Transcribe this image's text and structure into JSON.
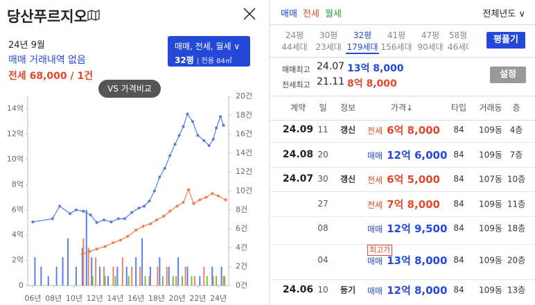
{
  "header": {
    "title": "당산푸르지오"
  },
  "summary": {
    "month": "24년 9월",
    "sale": "매매 거래내역 없음",
    "jeonse": "전세 68,000 / 1건"
  },
  "filter": {
    "types": "매매, 전세, 월세",
    "size": "32평",
    "area": "전용 84㎡"
  },
  "compare_button": "VS 가격비교",
  "chart_data": {
    "type": "line",
    "xlim": [
      2005.5,
      2025
    ],
    "xticks": [
      {
        "value": 2006,
        "label": "06년"
      },
      {
        "value": 2008,
        "label": "08년"
      },
      {
        "value": 2010,
        "label": "10년"
      },
      {
        "value": 2012,
        "label": "12년"
      },
      {
        "value": 2014,
        "label": "14년"
      },
      {
        "value": 2016,
        "label": "16년"
      },
      {
        "value": 2018,
        "label": "18년"
      },
      {
        "value": 2020,
        "label": "20년"
      },
      {
        "value": 2022,
        "label": "22년"
      },
      {
        "value": 2024,
        "label": "24년"
      }
    ],
    "ylim": [
      0,
      15
    ],
    "yticks": [
      0,
      {
        "value": 2,
        "label": "2억"
      },
      {
        "value": 4,
        "label": "4억"
      },
      {
        "value": 6,
        "label": "6억"
      },
      {
        "value": 8,
        "label": "8억"
      },
      {
        "value": 10,
        "label": "10억"
      },
      {
        "value": 12,
        "label": "12억"
      },
      {
        "value": 14,
        "label": "14억"
      }
    ],
    "y2lim": [
      0,
      20
    ],
    "y2ticks": [
      {
        "value": 0,
        "label": "0건"
      },
      {
        "value": 2,
        "label": "2건"
      },
      {
        "value": 4,
        "label": "4건"
      },
      {
        "value": 6,
        "label": "6건"
      },
      {
        "value": 8,
        "label": "8건"
      },
      {
        "value": 10,
        "label": "10건"
      },
      {
        "value": 12,
        "label": "12건"
      },
      {
        "value": 14,
        "label": "14건"
      },
      {
        "value": 16,
        "label": "16건"
      },
      {
        "value": 18,
        "label": "18건"
      },
      {
        "value": 20,
        "label": "20건"
      }
    ],
    "series": [
      {
        "type": "bar",
        "axis": "y2",
        "color": "#5b7fe8",
        "x": [
          2006.2,
          2006.8,
          2007.5,
          2008.3,
          2008.9,
          2009.4,
          2010.2,
          2010.8,
          2011.2,
          2011.7,
          2012.5,
          2013.3,
          2014.2,
          2015.1,
          2016.0,
          2016.6,
          2017.4,
          2018.3,
          2019.2,
          2020.1,
          2021.0,
          2022.2,
          2023.4,
          2024.3
        ],
        "values": [
          3,
          2,
          1,
          2,
          3,
          5,
          2,
          4,
          8,
          3,
          2,
          1,
          2,
          2,
          3,
          5,
          2,
          3,
          2,
          3,
          2,
          1,
          2,
          2
        ]
      },
      {
        "type": "bar",
        "axis": "y2",
        "color": "#f0845c",
        "x": [
          2010.9,
          2011.4,
          2012.1,
          2012.9,
          2013.8,
          2014.7,
          2015.6,
          2016.4,
          2017.3,
          2018.1,
          2019.0,
          2019.9,
          2020.8,
          2021.7,
          2022.6,
          2023.5,
          2024.5
        ],
        "values": [
          5,
          4,
          3,
          2,
          2,
          3,
          2,
          2,
          1,
          2,
          2,
          1,
          2,
          1,
          2,
          1,
          1
        ]
      },
      {
        "type": "bar",
        "axis": "y2",
        "color": "#6cc04a",
        "x": [
          2011.8,
          2013.0,
          2014.0,
          2015.3,
          2016.9,
          2018.6,
          2019.6,
          2020.5,
          2021.4,
          2022.9,
          2023.8,
          2024.6
        ],
        "values": [
          1,
          1,
          1,
          1,
          1,
          1,
          1,
          1,
          1,
          1,
          1,
          1
        ]
      },
      {
        "type": "line",
        "color": "#4f7be6",
        "x": [
          2006.0,
          2007.9,
          2008.6,
          2009.6,
          2010.2,
          2010.9,
          2011.6,
          2012.2,
          2012.9,
          2013.6,
          2014.3,
          2014.9,
          2015.6,
          2016.3,
          2016.8,
          2017.3,
          2017.8,
          2018.3,
          2018.8,
          2019.3,
          2019.8,
          2020.2,
          2020.6,
          2021.0,
          2021.5,
          2022.0,
          2022.6,
          2023.1,
          2023.5,
          2023.8,
          2024.2,
          2024.5
        ],
        "values": [
          5.05,
          5.3,
          6.3,
          5.7,
          6.0,
          5.9,
          5.6,
          5.0,
          5.2,
          5.05,
          5.3,
          5.3,
          5.8,
          6.15,
          6.3,
          6.7,
          7.5,
          8.6,
          9.3,
          10.3,
          11.2,
          11.9,
          12.6,
          13.6,
          13.0,
          11.9,
          11.5,
          11.1,
          11.6,
          12.5,
          13.4,
          12.7
        ]
      },
      {
        "type": "line",
        "color": "#f07a4a",
        "x": [
          2010.8,
          2011.5,
          2012.2,
          2013.0,
          2013.8,
          2014.5,
          2015.2,
          2016.0,
          2016.7,
          2017.4,
          2018.0,
          2018.7,
          2019.3,
          2020.0,
          2020.6,
          2021.1,
          2021.6,
          2022.2,
          2022.8,
          2023.4,
          2024.0,
          2024.7
        ],
        "values": [
          2.5,
          2.7,
          2.9,
          3.1,
          3.4,
          3.6,
          3.9,
          4.4,
          4.7,
          4.9,
          5.2,
          5.5,
          5.9,
          6.3,
          6.6,
          7.6,
          6.5,
          6.8,
          7.0,
          7.3,
          7.1,
          6.8
        ]
      }
    ]
  },
  "tabs": [
    "매매",
    "전세",
    "월세"
  ],
  "year_filter": "전체년도",
  "sizes": [
    {
      "size": "24평",
      "units": "44세대"
    },
    {
      "size": "30평",
      "units": "23세대"
    },
    {
      "size": "32평",
      "units": "179세대"
    },
    {
      "size": "41평",
      "units": "156세대"
    },
    {
      "size": "47평",
      "units": "90세대"
    },
    {
      "size": "58평",
      "units": "46세대"
    }
  ],
  "spread_button": "평풀기",
  "records": [
    {
      "label": "매매최고",
      "date": "24.07",
      "price": "13억 8,000"
    },
    {
      "label": "전세최고",
      "date": "21.11",
      "price": "8억 8,000"
    }
  ],
  "settings_button": "설정",
  "table": {
    "columns": [
      "계약",
      "일",
      "정보",
      "가격↓",
      "타입",
      "거래동",
      "층"
    ],
    "rows": [
      {
        "date": "24.09",
        "day": "11",
        "info": "갱신",
        "kind": "전세",
        "price": "6억 8,000",
        "type": "84",
        "dong": "109동",
        "floor": "4층"
      },
      {
        "date": "24.08",
        "day": "20",
        "kind": "매매",
        "price": "12억 6,000",
        "type": "84",
        "dong": "109동",
        "floor": "7층"
      },
      {
        "date": "24.07",
        "day": "30",
        "info": "갱신",
        "kind": "전세",
        "price": "6억 5,000",
        "type": "84",
        "dong": "107동",
        "floor": "10층"
      },
      {
        "day": "27",
        "kind": "전세",
        "price": "7억 8,000",
        "type": "84",
        "dong": "109동",
        "floor": "11층"
      },
      {
        "day": "08",
        "kind": "매매",
        "price": "12억 9,500",
        "type": "84",
        "dong": "109동",
        "floor": "18층"
      },
      {
        "day": "04",
        "badge": "최고가",
        "kind": "매매",
        "price": "13억 8,000",
        "type": "84",
        "dong": "109동",
        "floor": "20층"
      },
      {
        "date": "24.06",
        "day": "10",
        "info": "등기",
        "kind": "매매",
        "price": "12억 8,000",
        "type": "84",
        "dong": "109동",
        "floor": "13층"
      }
    ]
  }
}
